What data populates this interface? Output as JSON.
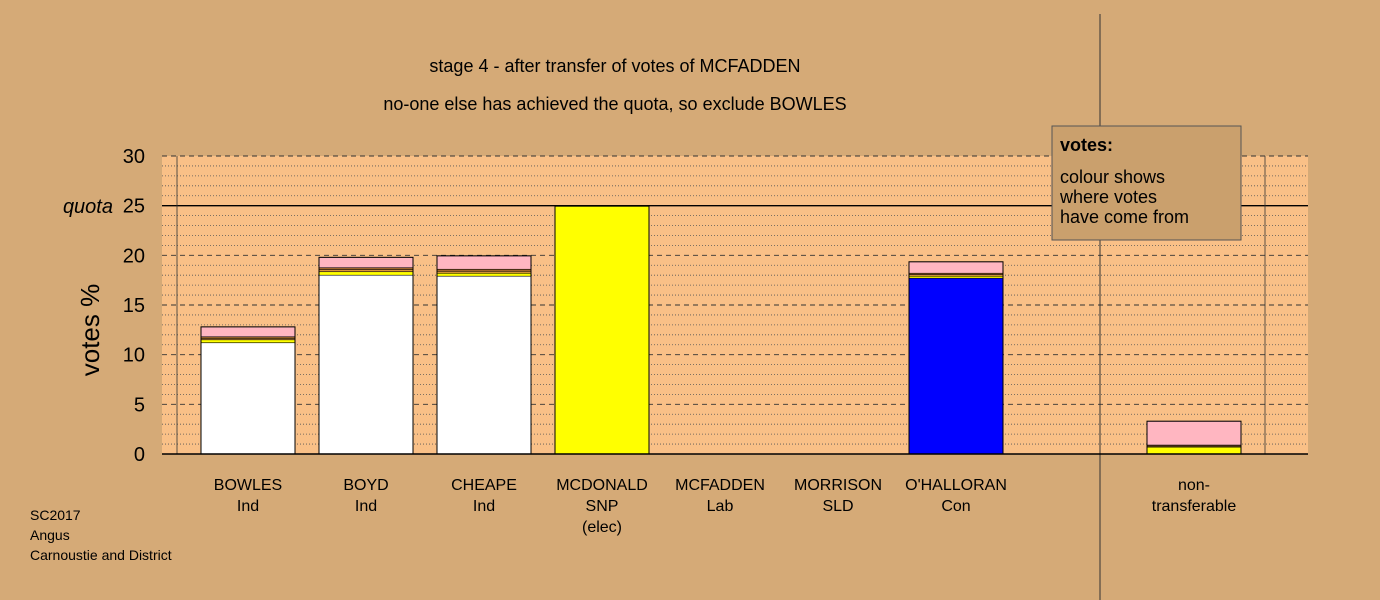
{
  "chart_data": {
    "type": "bar",
    "title": "stage 4 - after transfer of votes of MCFADDEN",
    "subtitle": "no-one else has achieved the quota, so exclude BOWLES",
    "ylabel": "votes %",
    "ylim": [
      0,
      30
    ],
    "yticks": [
      0,
      5,
      10,
      15,
      20,
      25,
      30
    ],
    "quota": {
      "label": "quota",
      "value": 25
    },
    "grid": true,
    "categories": [
      {
        "lines": [
          "BOWLES",
          "Ind"
        ]
      },
      {
        "lines": [
          "BOYD",
          "Ind"
        ]
      },
      {
        "lines": [
          "CHEAPE",
          "Ind"
        ]
      },
      {
        "lines": [
          "MCDONALD",
          "SNP",
          "(elec)"
        ]
      },
      {
        "lines": [
          "MCFADDEN",
          "Lab"
        ]
      },
      {
        "lines": [
          "MORRISON",
          "SLD"
        ]
      },
      {
        "lines": [
          "O'HALLORAN",
          "Con"
        ]
      }
    ],
    "nontransferable": {
      "lines": [
        "non-",
        "transferable"
      ]
    },
    "source_colors": {
      "Ind": "#ffffff",
      "SNP": "#ffff00",
      "Lab": "#e8a040",
      "SLD": "#b07030",
      "Con": "#0000ff",
      "transfer": "#ffb6c1"
    },
    "bars": [
      {
        "category": "BOWLES",
        "segments": [
          {
            "source": "Ind",
            "value": 11.2
          },
          {
            "source": "SNP",
            "value": 0.3
          },
          {
            "source": "Lab",
            "value": 0.15
          },
          {
            "source": "SLD",
            "value": 0.15
          },
          {
            "source": "transfer",
            "value": 1.0
          }
        ]
      },
      {
        "category": "BOYD",
        "segments": [
          {
            "source": "Ind",
            "value": 18.0
          },
          {
            "source": "SNP",
            "value": 0.35
          },
          {
            "source": "Lab",
            "value": 0.2
          },
          {
            "source": "SLD",
            "value": 0.2
          },
          {
            "source": "transfer",
            "value": 1.05
          }
        ]
      },
      {
        "category": "CHEAPE",
        "segments": [
          {
            "source": "Ind",
            "value": 17.9
          },
          {
            "source": "SNP",
            "value": 0.3
          },
          {
            "source": "Lab",
            "value": 0.2
          },
          {
            "source": "SLD",
            "value": 0.2
          },
          {
            "source": "transfer",
            "value": 1.35
          }
        ]
      },
      {
        "category": "MCDONALD",
        "segments": [
          {
            "source": "SNP",
            "value": 24.95
          }
        ]
      },
      {
        "category": "MCFADDEN",
        "segments": []
      },
      {
        "category": "MORRISON",
        "segments": []
      },
      {
        "category": "O'HALLORAN",
        "segments": [
          {
            "source": "Con",
            "value": 17.7
          },
          {
            "source": "SNP",
            "value": 0.2
          },
          {
            "source": "Lab",
            "value": 0.15
          },
          {
            "source": "SLD",
            "value": 0.15
          },
          {
            "source": "transfer",
            "value": 1.15
          }
        ]
      }
    ],
    "nontransferable_bar": {
      "segments": [
        {
          "source": "SNP",
          "value": 0.7
        },
        {
          "source": "Lab",
          "value": 0.1
        },
        {
          "source": "SLD",
          "value": 0.1
        },
        {
          "source": "transfer",
          "value": 2.4
        }
      ]
    },
    "legend": {
      "title": "votes:",
      "lines": [
        "colour shows",
        "where votes",
        "have come from"
      ],
      "placement": "top-right"
    }
  },
  "footer": {
    "lines": [
      "SC2017",
      "Angus",
      "Carnoustie and District"
    ]
  },
  "colors": {
    "background": "#d5aa77",
    "plot_fill": "#f9c087",
    "legend_fill": "#caa06d"
  }
}
